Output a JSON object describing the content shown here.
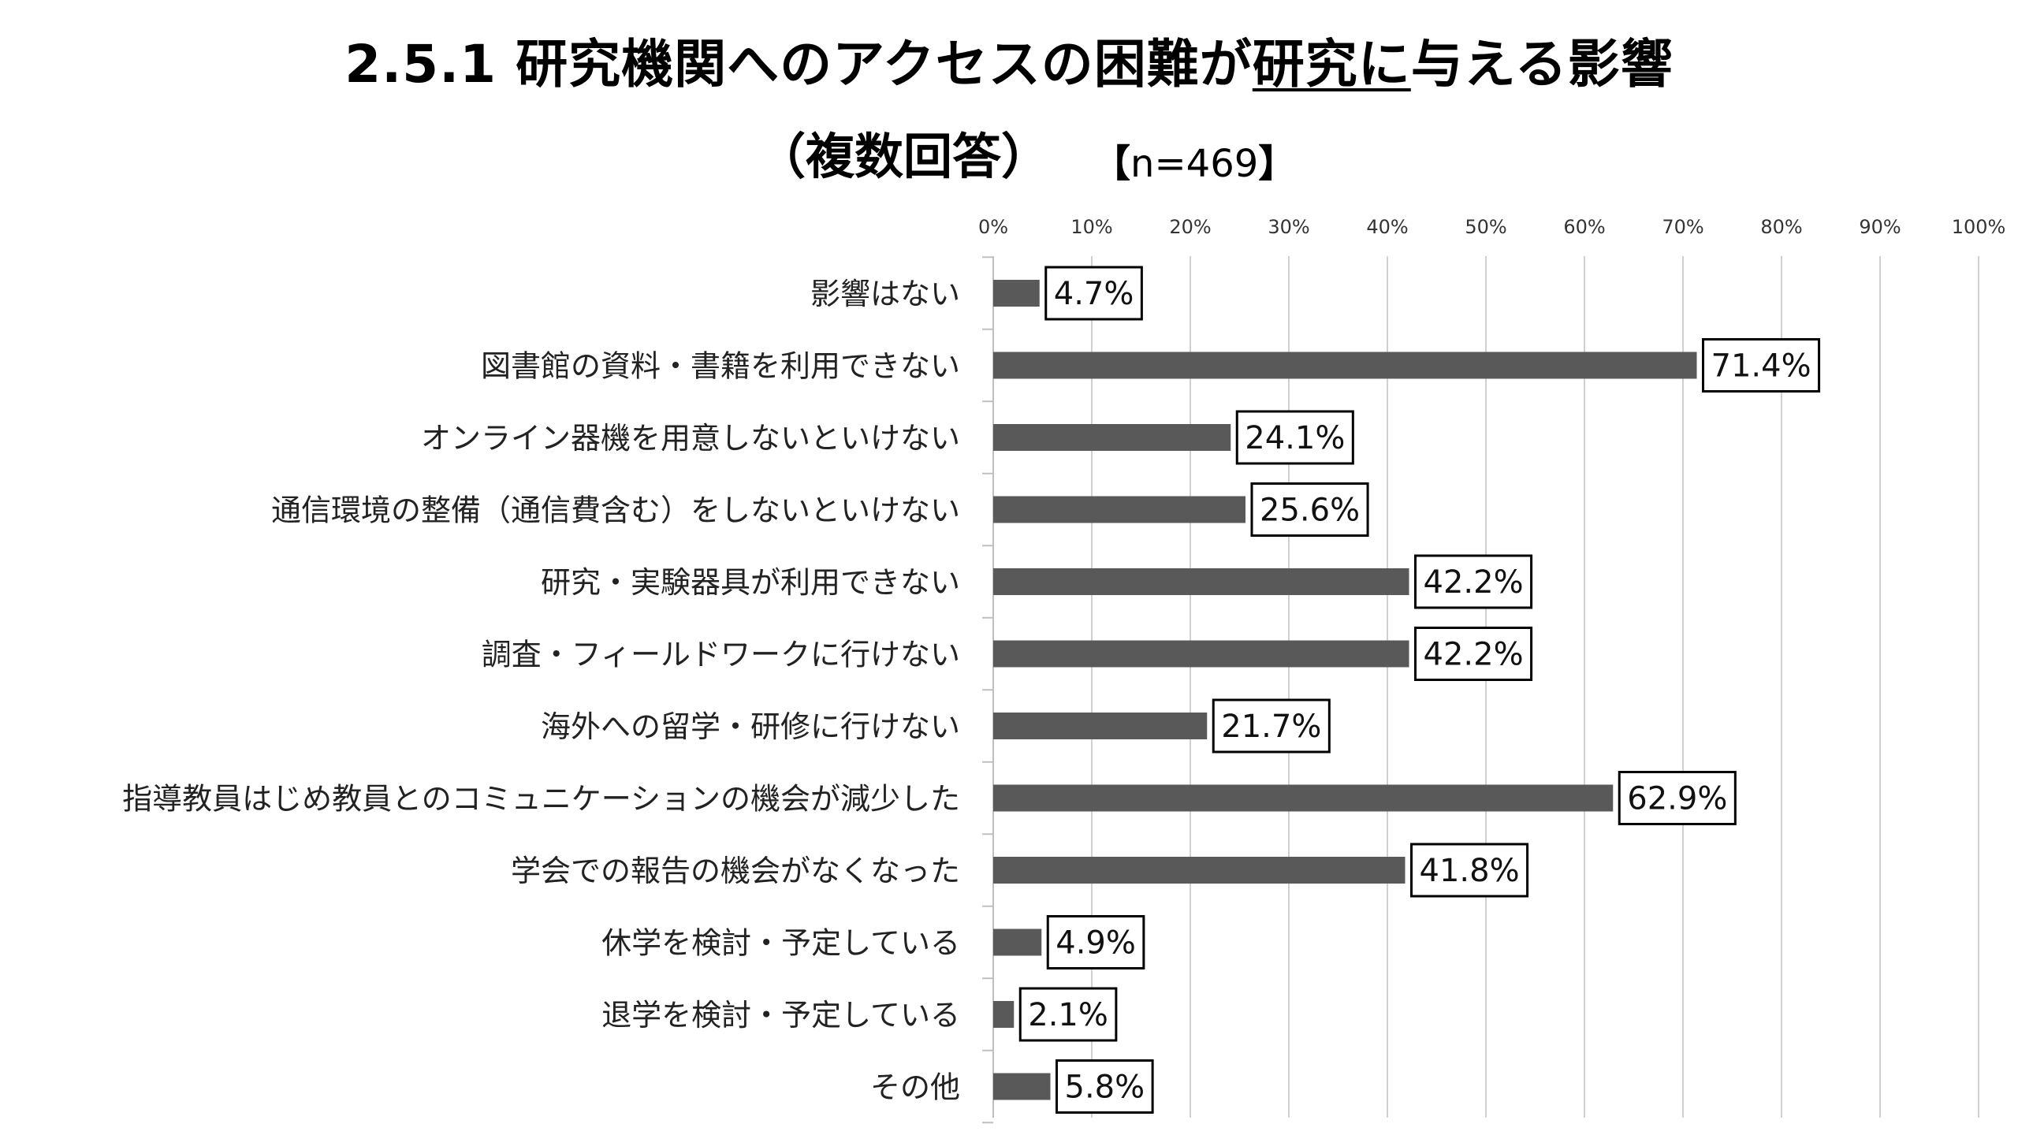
{
  "title": {
    "prefix": "2.5.1 研究機関へのアクセスの困難が",
    "underlined_1": "研究に",
    "middle": "与",
    "suffix": "える影響",
    "line2": "（複数回答）",
    "n_open": "【",
    "n_text": "n=469",
    "n_close": "】"
  },
  "colors": {
    "bar": "#595959",
    "grid": "#d0d0d0",
    "axis": "#bfbfbf",
    "label_border": "#000000"
  },
  "chart_data": {
    "type": "bar",
    "orientation": "horizontal",
    "categories": [
      "影響はない",
      "図書館の資料・書籍を利用できない",
      "オンライン器機を用意しないといけない",
      "通信環境の整備（通信費含む）をしないといけない",
      "研究・実験器具が利用できない",
      "調査・フィールドワークに行けない",
      "海外への留学・研修に行けない",
      "指導教員はじめ教員とのコミュニケーションの機会が減少した",
      "学会での報告の機会がなくなった",
      "休学を検討・予定している",
      "退学を検討・予定している",
      "その他"
    ],
    "values": [
      4.7,
      71.4,
      24.1,
      25.6,
      42.2,
      42.2,
      21.7,
      62.9,
      41.8,
      4.9,
      2.1,
      5.8
    ],
    "data_labels": [
      "4.7%",
      "71.4%",
      "24.1%",
      "25.6%",
      "42.2%",
      "42.2%",
      "21.7%",
      "62.9%",
      "41.8%",
      "4.9%",
      "2.1%",
      "5.8%"
    ],
    "xlim": [
      0,
      100
    ],
    "x_ticks": [
      0,
      10,
      20,
      30,
      40,
      50,
      60,
      70,
      80,
      90,
      100
    ],
    "x_tick_labels": [
      "0%",
      "10%",
      "20%",
      "30%",
      "40%",
      "50%",
      "60%",
      "70%",
      "80%",
      "90%",
      "100%"
    ],
    "x_axis_position": "top",
    "grid": true,
    "legend": false
  }
}
